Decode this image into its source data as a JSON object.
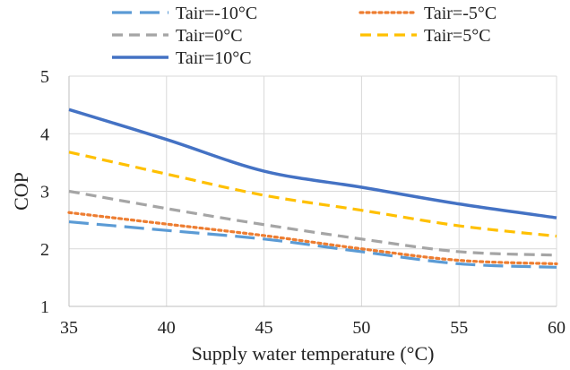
{
  "chart_data": {
    "type": "line",
    "title": "",
    "xlabel": "Supply water temperature (°C)",
    "ylabel": "COP",
    "xlim": [
      35,
      60
    ],
    "ylim": [
      1,
      5
    ],
    "x_ticks": [
      "35",
      "40",
      "45",
      "50",
      "55",
      "60"
    ],
    "y_ticks": [
      "1",
      "2",
      "3",
      "4",
      "5"
    ],
    "grid": true,
    "legend_position": "top",
    "x": [
      35,
      40,
      45,
      50,
      55,
      60
    ],
    "series": [
      {
        "name": "Tair=-10°C",
        "values": [
          2.47,
          2.32,
          2.17,
          1.95,
          1.74,
          1.68
        ],
        "color": "#5b9bd5",
        "style": "long-dash"
      },
      {
        "name": "Tair=-5°C",
        "values": [
          2.63,
          2.43,
          2.23,
          2.0,
          1.8,
          1.74
        ],
        "color": "#ed7d31",
        "style": "dotted"
      },
      {
        "name": "Tair=0°C",
        "values": [
          3.0,
          2.7,
          2.42,
          2.17,
          1.95,
          1.89
        ],
        "color": "#a5a5a5",
        "style": "dash"
      },
      {
        "name": "Tair=5°C",
        "values": [
          3.68,
          3.3,
          2.93,
          2.67,
          2.4,
          2.22
        ],
        "color": "#ffc000",
        "style": "dash"
      },
      {
        "name": "Tair=10°C",
        "values": [
          4.42,
          3.9,
          3.35,
          3.07,
          2.78,
          2.54
        ],
        "color": "#4472c4",
        "style": "solid"
      }
    ]
  }
}
